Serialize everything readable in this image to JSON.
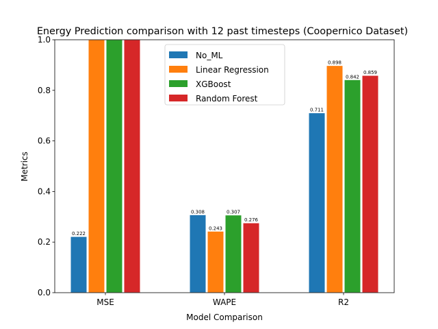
{
  "chart_data": {
    "type": "bar",
    "title": "Energy Prediction comparison with 12 past timesteps (Coopernico Dataset)",
    "xlabel": "Model Comparison",
    "ylabel": "Metrics",
    "ylim": [
      0,
      1.0
    ],
    "yticks": [
      "0.0",
      "0.2",
      "0.4",
      "0.6",
      "0.8",
      "1.0"
    ],
    "categories": [
      "MSE",
      "WAPE",
      "R2"
    ],
    "legend_position": "top-center",
    "grid": false,
    "series": [
      {
        "name": "No_ML",
        "color": "#1f77b4",
        "values": [
          0.222,
          0.308,
          0.711
        ],
        "labels": [
          "0.222",
          "0.308",
          "0.711"
        ]
      },
      {
        "name": "Linear Regression",
        "color": "#ff7f0e",
        "values": [
          1.0,
          0.243,
          0.898
        ],
        "labels": [
          "",
          "0.243",
          "0.898"
        ]
      },
      {
        "name": "XGBoost",
        "color": "#2ca02c",
        "values": [
          1.0,
          0.307,
          0.842
        ],
        "labels": [
          "",
          "0.307",
          "0.842"
        ]
      },
      {
        "name": "Random Forest",
        "color": "#d62728",
        "values": [
          1.0,
          0.276,
          0.859
        ],
        "labels": [
          "",
          "0.276",
          "0.859"
        ]
      }
    ]
  }
}
